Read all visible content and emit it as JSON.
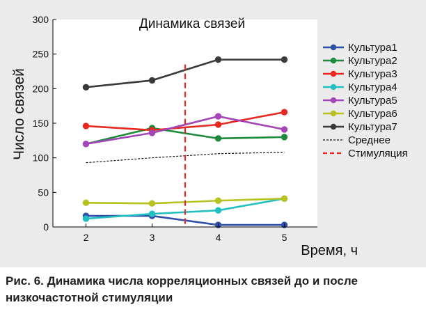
{
  "chart_data": {
    "type": "line",
    "title": "Динамика связей",
    "xlabel": "Время, ч",
    "ylabel": "Число связей",
    "x": [
      2,
      3,
      4,
      5
    ],
    "xlim": [
      1.5,
      5.5
    ],
    "ylim": [
      0,
      300
    ],
    "xticks": [
      "2",
      "3",
      "4",
      "5"
    ],
    "yticks": [
      "0",
      "50",
      "100",
      "150",
      "200",
      "250",
      "300"
    ],
    "grid": false,
    "legend_position": "right",
    "series": [
      {
        "name": "Культура1",
        "color": "#2e4faa",
        "style": "solid-marker",
        "values": [
          16,
          16,
          3,
          3
        ]
      },
      {
        "name": "Культура2",
        "color": "#1e8a3c",
        "style": "solid-marker",
        "values": [
          120,
          143,
          128,
          130
        ]
      },
      {
        "name": "Культура3",
        "color": "#e8291f",
        "style": "solid-marker",
        "values": [
          146,
          140,
          148,
          166
        ]
      },
      {
        "name": "Культура4",
        "color": "#22c0c0",
        "style": "solid-marker",
        "values": [
          12,
          19,
          24,
          41
        ]
      },
      {
        "name": "Культура5",
        "color": "#a445b8",
        "style": "solid-marker",
        "values": [
          120,
          136,
          160,
          141
        ]
      },
      {
        "name": "Культура6",
        "color": "#b8c21e",
        "style": "solid-marker",
        "values": [
          35,
          34,
          38,
          41
        ]
      },
      {
        "name": "Культура7",
        "color": "#3a3a3a",
        "style": "solid-marker",
        "values": [
          202,
          212,
          242,
          242
        ]
      },
      {
        "name": "Среднее",
        "color": "#111111",
        "style": "dotted",
        "values": [
          93,
          100,
          106,
          108
        ]
      }
    ],
    "annotations": [
      {
        "name": "Стимуляция",
        "type": "vline",
        "x": 3.5,
        "color": "#e8291f",
        "style": "dashed"
      }
    ]
  },
  "caption": "Рис. 6. Динамика числа корреляционных связей до и после низкочастотной стимуляции"
}
